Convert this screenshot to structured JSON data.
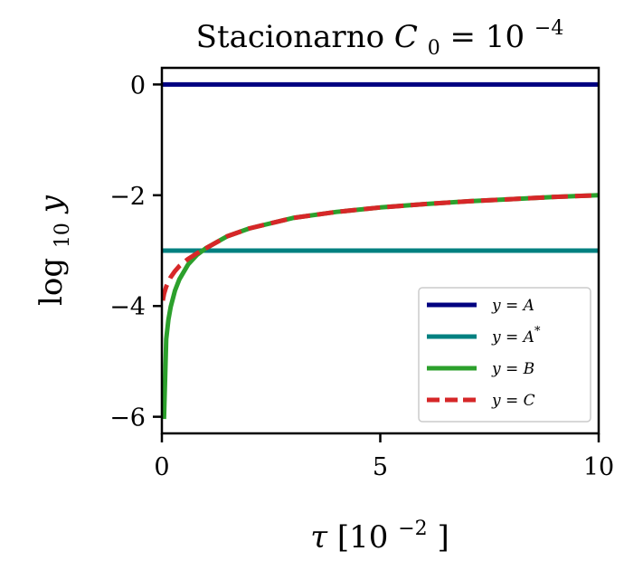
{
  "chart_data": {
    "type": "line",
    "title": {
      "text": "Stacionarno",
      "math_var": "C",
      "math_sub": "0",
      "math_rel": " = 10",
      "math_exp": "−4"
    },
    "xlabel": {
      "var": "τ",
      "unit_open": " [10",
      "unit_exp": "−2",
      "unit_close": "]"
    },
    "ylabel": {
      "fn": "log",
      "sub": "10",
      "var": " y"
    },
    "xlim": [
      0,
      10
    ],
    "ylim": [
      -6.3,
      0.3
    ],
    "x_ticks": [
      {
        "value": 0,
        "label": "0"
      },
      {
        "value": 5,
        "label": "5"
      },
      {
        "value": 10,
        "label": "10"
      }
    ],
    "y_ticks": [
      {
        "value": 0,
        "label": "0"
      },
      {
        "value": -2,
        "label": "−2"
      },
      {
        "value": -4,
        "label": "−4"
      },
      {
        "value": -6,
        "label": "−6"
      }
    ],
    "grid": false,
    "legend_position": "lower-right",
    "series": [
      {
        "name": "y = A",
        "color": "#000080",
        "dash": "solid",
        "x": [
          0,
          10
        ],
        "y": [
          0,
          0
        ]
      },
      {
        "name": "y = A*",
        "color": "#008080",
        "dash": "solid",
        "x": [
          0,
          10
        ],
        "y": [
          -3,
          -3
        ]
      },
      {
        "name": "y = B",
        "color": "#2ca02c",
        "dash": "solid",
        "x": [
          0.05,
          0.1,
          0.15,
          0.2,
          0.3,
          0.4,
          0.6,
          0.8,
          1.0,
          1.5,
          2.0,
          3.0,
          4.0,
          5.0,
          6.0,
          7.0,
          8.0,
          9.0,
          10.0
        ],
        "y": [
          -6.0,
          -4.6,
          -4.25,
          -4.02,
          -3.72,
          -3.52,
          -3.25,
          -3.08,
          -2.96,
          -2.74,
          -2.6,
          -2.41,
          -2.3,
          -2.22,
          -2.16,
          -2.11,
          -2.07,
          -2.03,
          -2.0
        ]
      },
      {
        "name": "y = C",
        "color": "#d62728",
        "dash": "dashed",
        "x": [
          0.02,
          0.05,
          0.1,
          0.2,
          0.3,
          0.4,
          0.6,
          0.8,
          1.0,
          1.5,
          2.0,
          3.0,
          4.0,
          5.0,
          6.0,
          7.0,
          8.0,
          9.0,
          10.0
        ],
        "y": [
          -3.9,
          -3.78,
          -3.65,
          -3.48,
          -3.37,
          -3.28,
          -3.15,
          -3.05,
          -2.96,
          -2.74,
          -2.6,
          -2.41,
          -2.3,
          -2.22,
          -2.16,
          -2.11,
          -2.07,
          -2.03,
          -2.0
        ]
      }
    ]
  },
  "legend_entries": [
    {
      "lhs": "y",
      "rel": " = ",
      "rhs": "A",
      "sup": ""
    },
    {
      "lhs": "y",
      "rel": " = ",
      "rhs": "A",
      "sup": "*"
    },
    {
      "lhs": "y",
      "rel": " = ",
      "rhs": "B",
      "sup": ""
    },
    {
      "lhs": "y",
      "rel": " = ",
      "rhs": "C",
      "sup": ""
    }
  ]
}
